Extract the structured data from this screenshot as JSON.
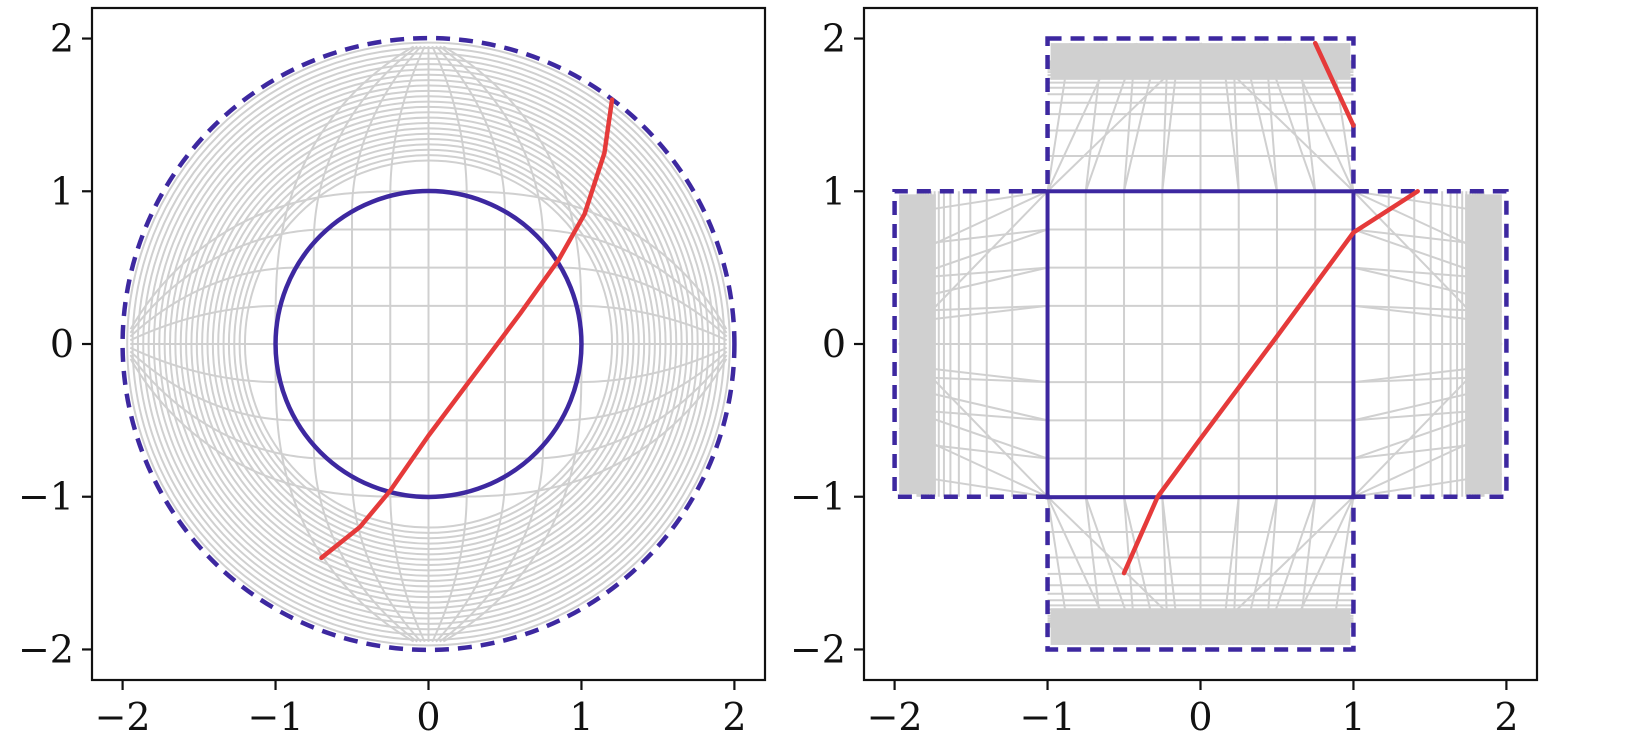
{
  "colors": {
    "grid": "#d0d0d0",
    "boundary": "#3d28a0",
    "path": "#e53a3a",
    "frame": "#111111"
  },
  "chart_data": [
    {
      "type": "line",
      "panel": "left",
      "title": "",
      "xlabel": "",
      "ylabel": "",
      "xlim": [
        -2.2,
        2.2
      ],
      "ylim": [
        -2.2,
        2.2
      ],
      "xticks": [
        -2,
        -1,
        0,
        1,
        2
      ],
      "yticks": [
        -2,
        -1,
        0,
        1,
        2
      ],
      "xtick_labels": [
        "−2",
        "−1",
        "0",
        "1",
        "2"
      ],
      "ytick_labels": [
        "−2",
        "−1",
        "0",
        "1",
        "2"
      ],
      "grid_lines_in_data": true,
      "shapes": [
        {
          "kind": "circle",
          "center": [
            0,
            0
          ],
          "radius": 1,
          "style": "solid"
        },
        {
          "kind": "circle",
          "center": [
            0,
            0
          ],
          "radius": 2,
          "style": "dashed"
        }
      ],
      "series": [
        {
          "x": [
            -0.7,
            -0.45,
            -0.25,
            0.0,
            0.3,
            0.6,
            0.85,
            1.02,
            1.15,
            1.2
          ],
          "y": [
            -1.4,
            -1.2,
            -0.96,
            -0.6,
            -0.2,
            0.2,
            0.55,
            0.85,
            1.25,
            1.6
          ]
        }
      ]
    },
    {
      "type": "line",
      "panel": "right",
      "title": "",
      "xlabel": "",
      "ylabel": "",
      "xlim": [
        -2.2,
        2.2
      ],
      "ylim": [
        -2.2,
        2.2
      ],
      "xticks": [
        -2,
        -1,
        0,
        1,
        2
      ],
      "yticks": [
        -2,
        -1,
        0,
        1,
        2
      ],
      "xtick_labels": [
        "−2",
        "−1",
        "0",
        "1",
        "2"
      ],
      "ytick_labels": [
        "−2",
        "−1",
        "0",
        "1",
        "2"
      ],
      "grid_lines_in_data": true,
      "shapes": [
        {
          "kind": "square",
          "center": [
            0,
            0
          ],
          "half_width": 1,
          "style": "solid"
        },
        {
          "kind": "cross",
          "arm_half_width": 1,
          "extent": 2,
          "style": "dashed"
        }
      ],
      "series": [
        {
          "x": [
            -0.5,
            -0.28,
            0.0,
            0.5,
            1.0,
            1.42
          ],
          "y": [
            -1.5,
            -1.0,
            -0.62,
            0.05,
            0.73,
            1.0
          ]
        },
        {
          "x": [
            0.75,
            1.0
          ],
          "y": [
            1.97,
            1.43
          ]
        }
      ]
    }
  ]
}
